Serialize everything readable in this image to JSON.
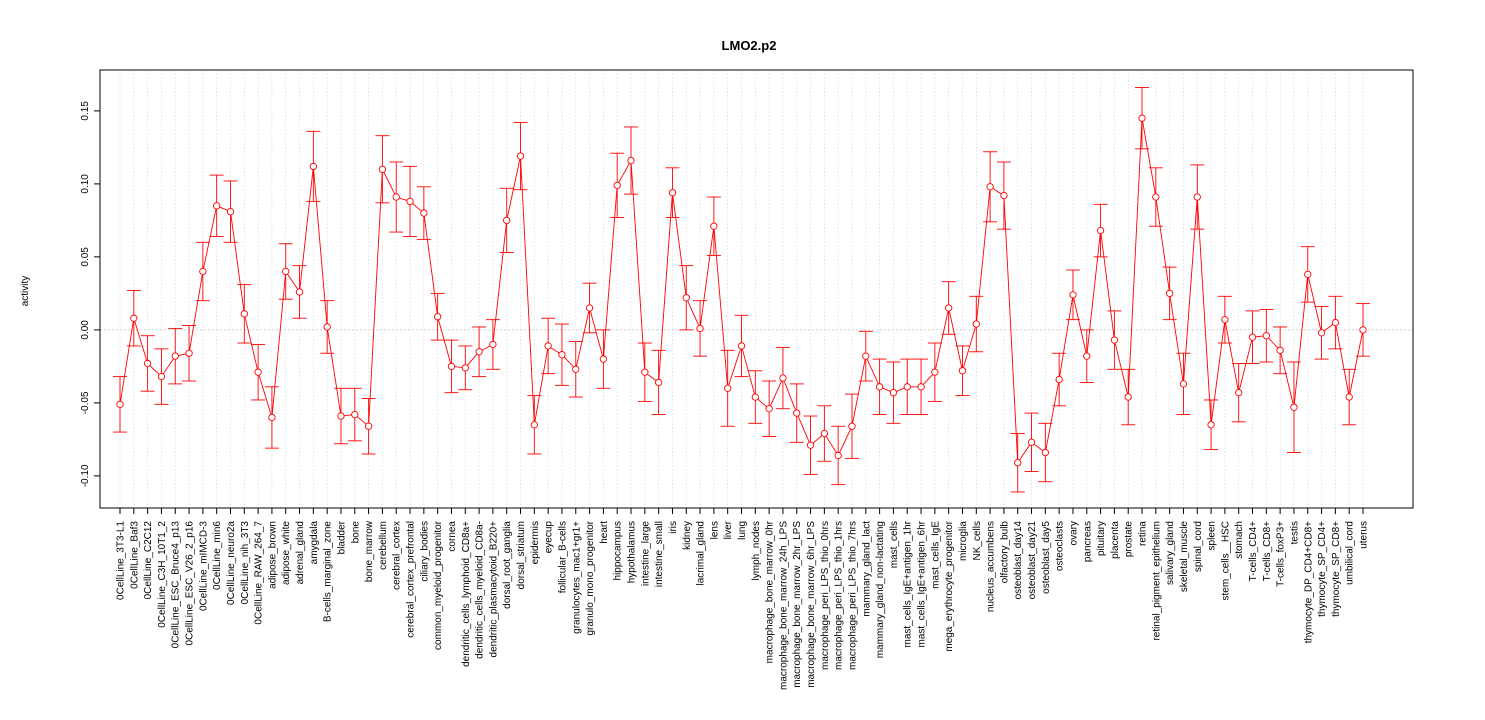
{
  "chart_data": {
    "type": "line",
    "title": "LMO2.p2",
    "xlabel": "",
    "ylabel": "activity",
    "ylim": [
      -0.122,
      0.178
    ],
    "yticks": [
      -0.1,
      -0.05,
      0.0,
      0.05,
      0.1,
      0.15
    ],
    "ytick_labels": [
      "-0.10",
      "-0.05",
      "0.00",
      "0.05",
      "0.10",
      "0.15"
    ],
    "grid": true,
    "reference_line": 0.0,
    "series_color": "#ff0000",
    "categories": [
      "0CellLine_3T3-L1",
      "0CellLine_Baf3",
      "0CellLine_C2C12",
      "0CellLine_C3H_10T1_2",
      "0CellLine_ESC_Bruce4_p13",
      "0CellLine_ESC_V26_2_p16",
      "0CellLine_mIMCD-3",
      "0CellLine_min6",
      "0CellLine_neuro2a",
      "0CellLine_nih_3T3",
      "0CellLine_RAW_264_7",
      "adipose_brown",
      "adipose_white",
      "adrenal_gland",
      "amygdala",
      "B-cells_marginal_zone",
      "bladder",
      "bone",
      "bone_marrow",
      "cerebellum",
      "cerebral_cortex",
      "cerebral_cortex_prefrontal",
      "ciliary_bodies",
      "common_myeloid_progenitor",
      "cornea",
      "dendritic_cells_lymphoid_CD8a+",
      "dendritic_cells_myeloid_CD8a-",
      "dendritic_plasmacytoid_B220+",
      "dorsal_root_ganglia",
      "dorsal_striatum",
      "epidermis",
      "eyecup",
      "follicular_B-cells",
      "granulocytes_mac1+gr1+",
      "granulo_mono_progenitor",
      "heart",
      "hippocampus",
      "hypothalamus",
      "intestine_large",
      "intestine_small",
      "iris",
      "kidney",
      "lacrimal_gland",
      "lens",
      "liver",
      "lung",
      "lymph_nodes",
      "macrophage_bone_marrow_0hr",
      "macrophage_bone_marrow_24h_LPS",
      "macrophage_bone_marrow_2hr_LPS",
      "macrophage_bone_marrow_6hr_LPS",
      "macrophage_peri_LPS_thio_0hrs",
      "macrophage_peri_LPS_thio_1hrs",
      "macrophage_peri_LPS_thio_7hrs",
      "mammary_gland_lact",
      "mammary_gland_non-lactating",
      "mast_cells",
      "mast_cells_IgE+antigen_1hr",
      "mast_cells_IgE+antigen_6hr",
      "mast_cells_IgE",
      "mega_erythrocyte_progenitor",
      "microglia",
      "NK_cells",
      "nucleus_accumbens",
      "olfactory_bulb",
      "osteoblast_day14",
      "osteoblast_day21",
      "osteoblast_day5",
      "osteoclasts",
      "ovary",
      "pancreas",
      "pituitary",
      "placenta",
      "prostate",
      "retina",
      "retinal_pigment_epithelium",
      "salivary_gland",
      "skeletal_muscle",
      "spinal_cord",
      "spleen",
      "stem_cells__HSC",
      "stomach",
      "T-cells_CD4+",
      "T-cells_CD8+",
      "T-cells_foxP3+",
      "testis",
      "thymocyte_DP_CD4+CD8+",
      "thymocyte_SP_CD4+",
      "thymocyte_SP_CD8+",
      "umbilical_cord",
      "uterus"
    ],
    "values": [
      -0.051,
      0.008,
      -0.023,
      -0.032,
      -0.018,
      -0.016,
      0.04,
      0.085,
      0.081,
      0.011,
      -0.029,
      -0.06,
      0.04,
      0.026,
      0.112,
      0.002,
      -0.059,
      -0.058,
      -0.066,
      0.11,
      0.091,
      0.088,
      0.08,
      0.009,
      -0.025,
      -0.026,
      -0.015,
      -0.01,
      0.075,
      0.119,
      -0.065,
      -0.011,
      -0.017,
      -0.027,
      0.015,
      -0.02,
      0.099,
      0.116,
      -0.029,
      -0.036,
      0.094,
      0.022,
      0.001,
      0.071,
      -0.04,
      -0.011,
      -0.046,
      -0.054,
      -0.033,
      -0.057,
      -0.079,
      -0.071,
      -0.086,
      -0.066,
      -0.018,
      -0.039,
      -0.043,
      -0.039,
      -0.039,
      -0.029,
      0.015,
      -0.028,
      0.004,
      0.098,
      0.092,
      -0.091,
      -0.077,
      -0.084,
      -0.034,
      0.024,
      -0.018,
      0.068,
      -0.007,
      -0.046,
      0.145,
      0.091,
      0.025,
      -0.037,
      0.091,
      -0.065,
      0.007,
      -0.043,
      -0.005,
      -0.004,
      -0.014,
      -0.053,
      0.038,
      -0.002,
      0.005,
      -0.046,
      0.0
    ],
    "errors": [
      0.019,
      0.019,
      0.019,
      0.019,
      0.019,
      0.019,
      0.02,
      0.021,
      0.021,
      0.02,
      0.019,
      0.021,
      0.019,
      0.018,
      0.024,
      0.018,
      0.019,
      0.018,
      0.019,
      0.023,
      0.024,
      0.024,
      0.018,
      0.016,
      0.018,
      0.015,
      0.017,
      0.017,
      0.022,
      0.023,
      0.02,
      0.019,
      0.021,
      0.019,
      0.017,
      0.02,
      0.022,
      0.023,
      0.02,
      0.022,
      0.017,
      0.022,
      0.019,
      0.02,
      0.026,
      0.021,
      0.018,
      0.019,
      0.021,
      0.02,
      0.02,
      0.019,
      0.02,
      0.022,
      0.017,
      0.019,
      0.021,
      0.019,
      0.019,
      0.02,
      0.018,
      0.017,
      0.019,
      0.024,
      0.023,
      0.02,
      0.02,
      0.02,
      0.018,
      0.017,
      0.018,
      0.018,
      0.02,
      0.019,
      0.021,
      0.02,
      0.018,
      0.021,
      0.022,
      0.017,
      0.016,
      0.02,
      0.018,
      0.018,
      0.016,
      0.031,
      0.019,
      0.018,
      0.018,
      0.019,
      0.018
    ]
  }
}
